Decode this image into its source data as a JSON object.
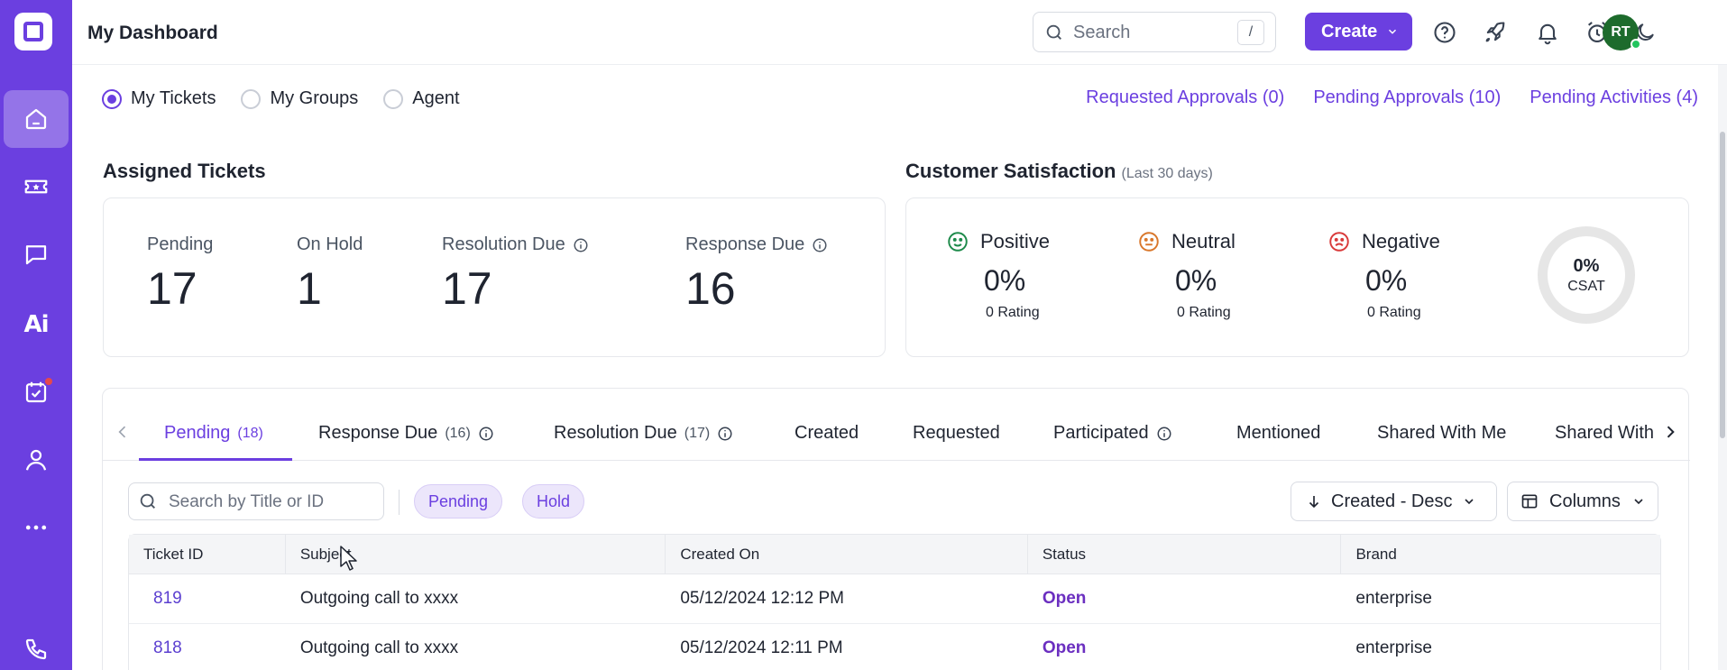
{
  "app": {
    "page_title": "My Dashboard",
    "brand_color": "#6b3fe0"
  },
  "header": {
    "search_placeholder": "Search",
    "search_shortcut": "/",
    "create_label": "Create",
    "avatar_initials": "RT"
  },
  "sidebar": {
    "items": [
      {
        "name": "home-icon",
        "active": true
      },
      {
        "name": "ticket-icon"
      },
      {
        "name": "chat-icon"
      },
      {
        "name": "ai-icon",
        "label": "Ai"
      },
      {
        "name": "task-icon",
        "has_badge": true
      },
      {
        "name": "user-icon"
      },
      {
        "name": "more-icon"
      },
      {
        "name": "phone-icon"
      }
    ]
  },
  "filters": {
    "radios": [
      {
        "label": "My Tickets",
        "checked": true
      },
      {
        "label": "My Groups",
        "checked": false
      },
      {
        "label": "Agent",
        "checked": false
      }
    ],
    "links": [
      {
        "label": "Requested Approvals (0)"
      },
      {
        "label": "Pending Approvals (10)"
      },
      {
        "label": "Pending Activities (4)"
      }
    ]
  },
  "assigned": {
    "title": "Assigned Tickets",
    "stats": [
      {
        "label": "Pending",
        "value": "17"
      },
      {
        "label": "On Hold",
        "value": "1"
      },
      {
        "label": "Resolution Due",
        "value": "17"
      },
      {
        "label": "Response Due",
        "value": "16"
      }
    ]
  },
  "csat": {
    "title": "Customer Satisfaction",
    "subtitle": "(Last 30 days)",
    "items": [
      {
        "label": "Positive",
        "pct": "0%",
        "rating": "0 Rating",
        "color": "#1d8a4a"
      },
      {
        "label": "Neutral",
        "pct": "0%",
        "rating": "0 Rating",
        "color": "#d9772b"
      },
      {
        "label": "Negative",
        "pct": "0%",
        "rating": "0 Rating",
        "color": "#d93a3a"
      }
    ],
    "ring_value": "0%",
    "ring_label": "CSAT"
  },
  "tabs": [
    {
      "label": "Pending",
      "count": "(18)"
    },
    {
      "label": "Response Due",
      "count": "(16)"
    },
    {
      "label": "Resolution Due",
      "count": "(17)"
    },
    {
      "label": "Created"
    },
    {
      "label": "Requested"
    },
    {
      "label": "Participated"
    },
    {
      "label": "Mentioned"
    },
    {
      "label": "Shared With Me"
    },
    {
      "label": "Shared With"
    }
  ],
  "table_controls": {
    "search_placeholder": "Search by Title or ID",
    "chips": [
      "Pending",
      "Hold"
    ],
    "sort_label": "Created - Desc",
    "columns_label": "Columns"
  },
  "table": {
    "headers": [
      "Ticket ID",
      "Subject",
      "Created On",
      "Status",
      "Brand"
    ],
    "rows": [
      {
        "id": "819",
        "subject": "Outgoing call to xxxx",
        "created": "05/12/2024 12:12 PM",
        "status": "Open",
        "brand": "enterprise"
      },
      {
        "id": "818",
        "subject": "Outgoing call to xxxx",
        "created": "05/12/2024 12:11 PM",
        "status": "Open",
        "brand": "enterprise"
      }
    ]
  }
}
